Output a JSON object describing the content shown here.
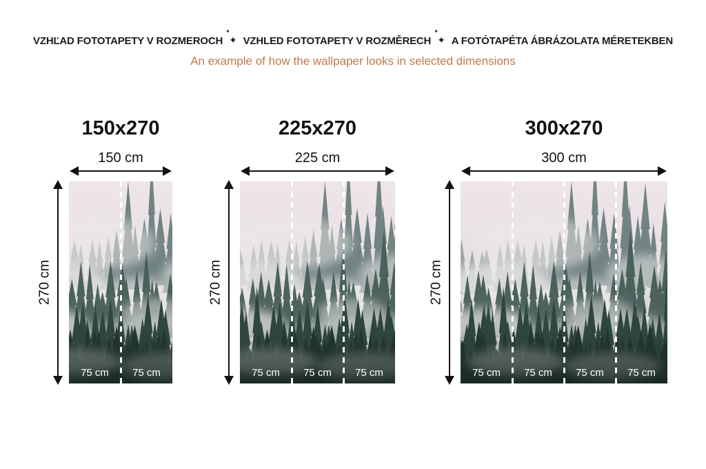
{
  "header": {
    "title_parts": [
      "VZHĽAD FOTOTAPETY V ROZMEROCH",
      "VZHLED FOTOTAPETY V ROZMĚRECH",
      "A FOTÓTAPÉTA ÁBRÁZOLATA MÉRETEKBEN"
    ],
    "subtitle": "An example of how the wallpaper looks in selected dimensions"
  },
  "icons": {
    "sparkle": "✦"
  },
  "colors": {
    "header_text": "#1c1c1c",
    "subtitle_text": "#c0784c",
    "dimension_text": "#121212",
    "panel_label": "#ffffff"
  },
  "figures": [
    {
      "title": "150x270",
      "width_label": "150 cm",
      "height_label": "270 cm",
      "panels": [
        "75 cm",
        "75 cm"
      ]
    },
    {
      "title": "225x270",
      "width_label": "225 cm",
      "height_label": "270 cm",
      "panels": [
        "75 cm",
        "75 cm",
        "75 cm"
      ]
    },
    {
      "title": "300x270",
      "width_label": "300 cm",
      "height_label": "270 cm",
      "panels": [
        "75 cm",
        "75 cm",
        "75 cm",
        "75 cm"
      ]
    }
  ]
}
